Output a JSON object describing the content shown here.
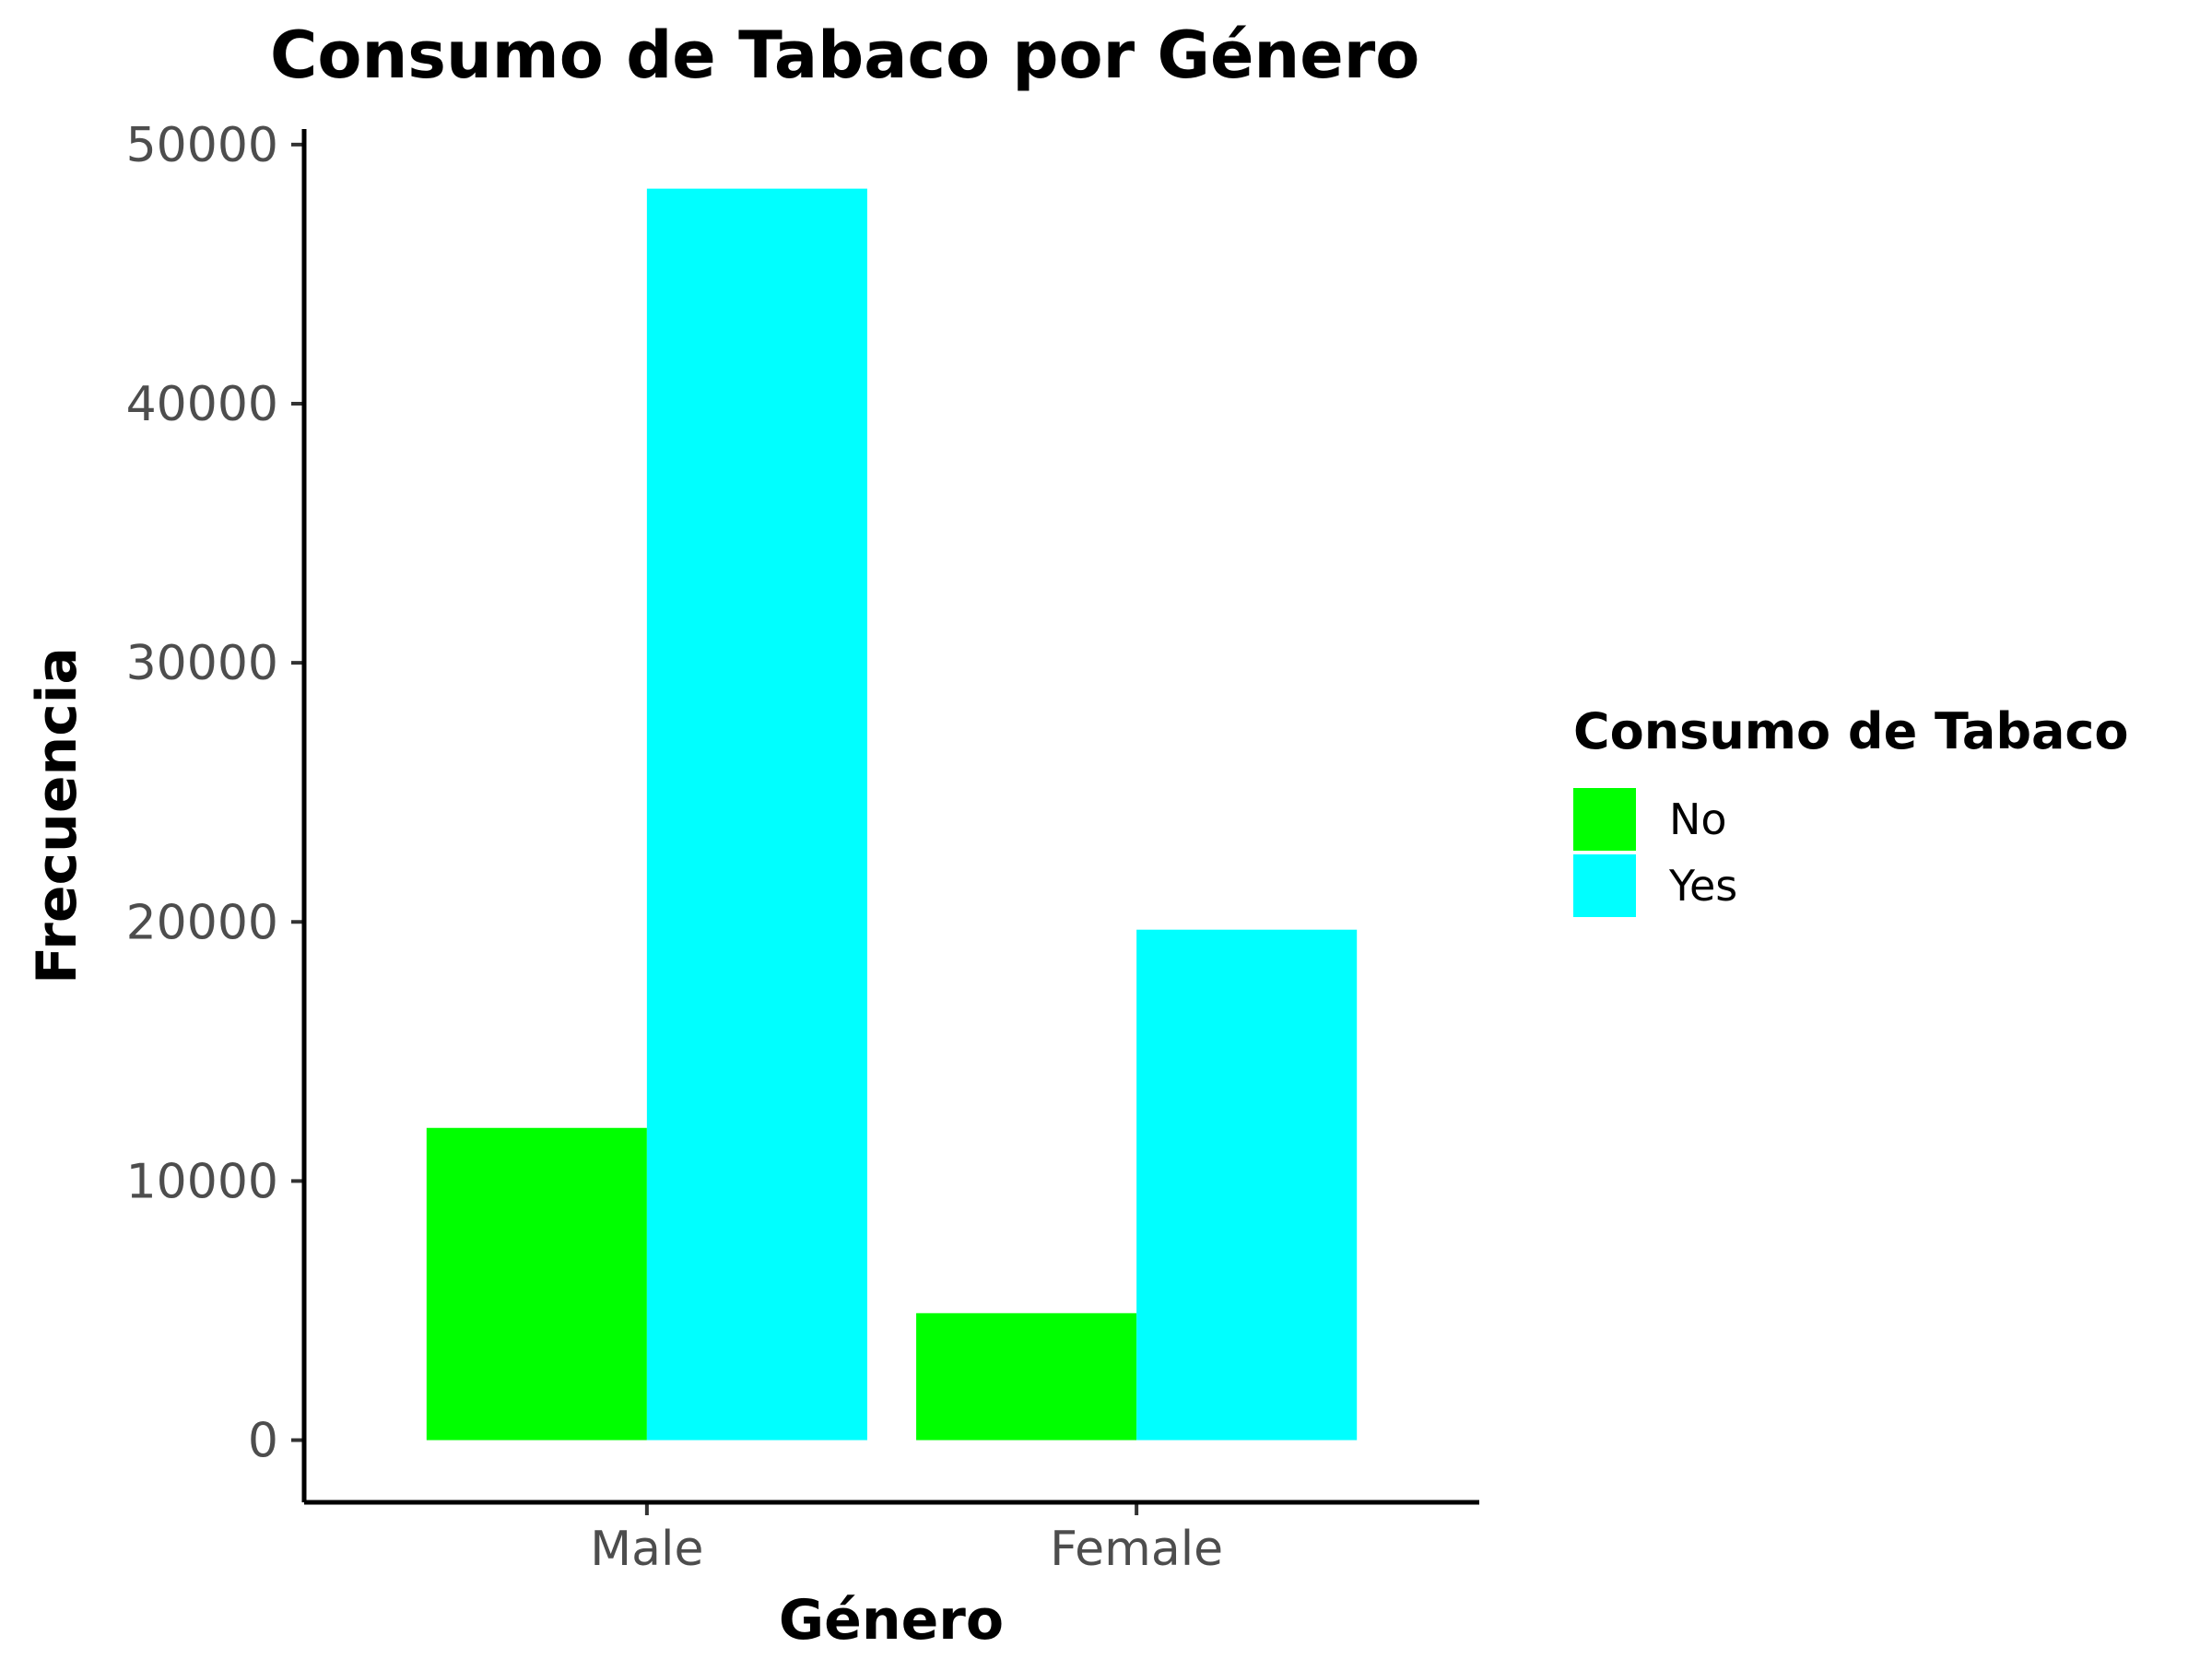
{
  "chart_data": {
    "type": "bar",
    "title": "Consumo de Tabaco por Género",
    "xlabel": "Género",
    "ylabel": "Frecuencia",
    "categories": [
      "Male",
      "Female"
    ],
    "series": [
      {
        "name": "No",
        "color": "#00ff00",
        "values": [
          12050,
          4900
        ]
      },
      {
        "name": "Yes",
        "color": "#00ffff",
        "values": [
          48300,
          19700
        ]
      }
    ],
    "ylim": [
      -2400,
      50600
    ],
    "yticks": [
      0,
      10000,
      20000,
      30000,
      40000,
      50000
    ],
    "ytick_labels": [
      "0",
      "10000",
      "20000",
      "30000",
      "40000",
      "50000"
    ],
    "legend": {
      "title": "Consumo de Tabaco",
      "position": "right"
    },
    "grid": false
  }
}
